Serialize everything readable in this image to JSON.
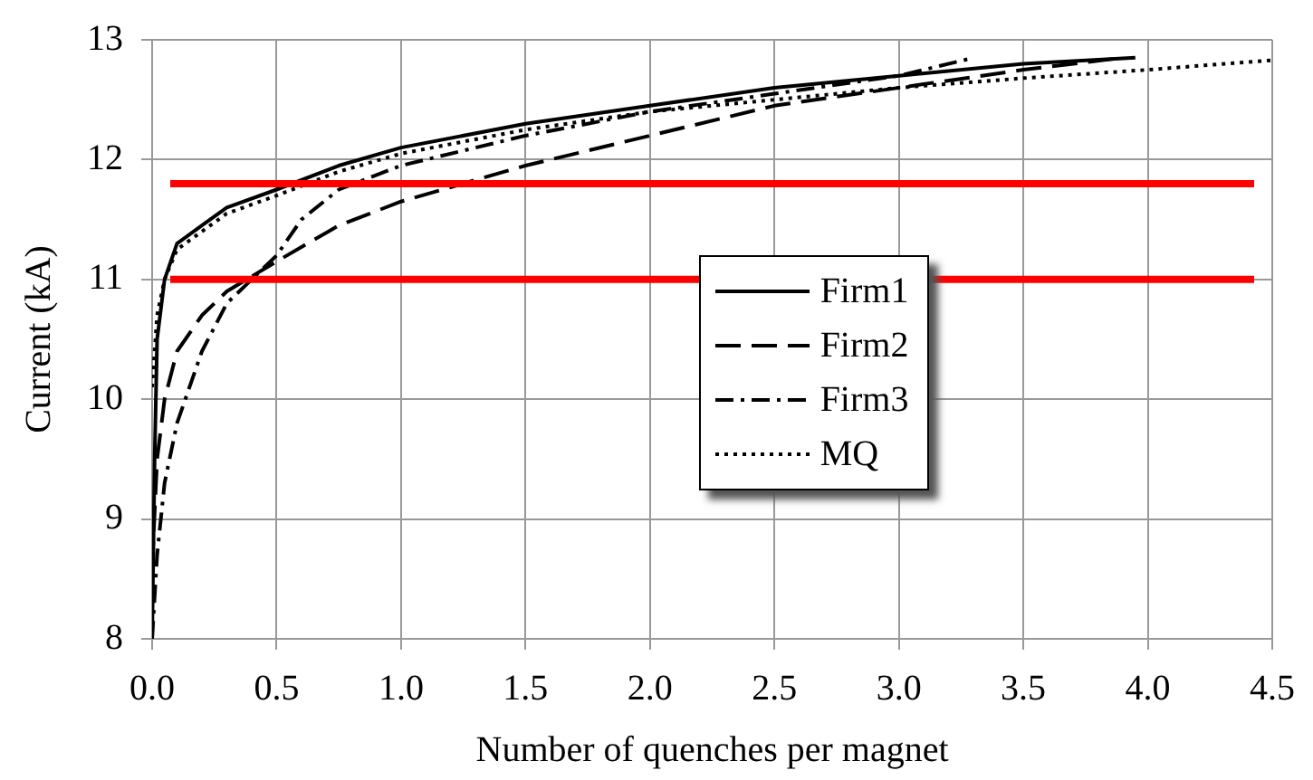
{
  "chart_data": {
    "type": "line",
    "xlabel": "Number of quenches per magnet",
    "ylabel": "Current (kA)",
    "xlim": [
      0,
      4.5
    ],
    "xticks": [
      {
        "value": 0,
        "label": "0.0"
      },
      {
        "value": 0.5,
        "label": "0.5"
      },
      {
        "value": 1,
        "label": "1.0"
      },
      {
        "value": 1.5,
        "label": "1.5"
      },
      {
        "value": 2,
        "label": "2.0"
      },
      {
        "value": 2.5,
        "label": "2.5"
      },
      {
        "value": 3,
        "label": "3.0"
      },
      {
        "value": 3.5,
        "label": "3.5"
      },
      {
        "value": 4,
        "label": "4.0"
      },
      {
        "value": 4.5,
        "label": "4.5"
      }
    ],
    "ylim": [
      8,
      13
    ],
    "yticks": [
      8,
      9,
      10,
      11,
      12,
      13
    ],
    "grid": true,
    "legend": "center",
    "marker": "none",
    "series": [
      {
        "name": "Firm1",
        "color": "#000000",
        "line_style": "solid",
        "x": [
          0,
          0.01,
          0.02,
          0.05,
          0.1,
          0.2,
          0.3,
          0.5,
          0.75,
          1.0,
          1.5,
          2.0,
          2.5,
          3.0,
          3.5,
          3.95
        ],
        "values": [
          8,
          9.5,
          10.5,
          11,
          11.3,
          11.45,
          11.6,
          11.75,
          11.95,
          12.1,
          12.3,
          12.45,
          12.6,
          12.7,
          12.8,
          12.85
        ]
      },
      {
        "name": "Firm2",
        "color": "#000000",
        "line_style": "dashed",
        "x": [
          0,
          0.02,
          0.05,
          0.1,
          0.2,
          0.3,
          0.5,
          0.75,
          1.0,
          1.5,
          2.0,
          2.5,
          3.0,
          3.5,
          3.9
        ],
        "values": [
          8.6,
          9.5,
          10,
          10.4,
          10.7,
          10.9,
          11.15,
          11.45,
          11.65,
          11.95,
          12.2,
          12.45,
          12.6,
          12.75,
          12.85
        ]
      },
      {
        "name": "Firm3",
        "color": "#000000",
        "line_style": "dashdot",
        "x": [
          0,
          0.02,
          0.05,
          0.1,
          0.2,
          0.3,
          0.5,
          0.6,
          0.75,
          1.0,
          1.5,
          2.0,
          2.5,
          3.0,
          3.3
        ],
        "values": [
          8,
          8.7,
          9.3,
          9.8,
          10.4,
          10.8,
          11.2,
          11.5,
          11.75,
          11.95,
          12.2,
          12.4,
          12.55,
          12.7,
          12.85
        ]
      },
      {
        "name": "MQ",
        "color": "#000000",
        "line_style": "dotted",
        "x": [
          0,
          0.02,
          0.05,
          0.1,
          0.2,
          0.3,
          0.5,
          0.75,
          1.0,
          1.5,
          2.0,
          2.5,
          3.0,
          3.5,
          4.0,
          4.5
        ],
        "values": [
          10.1,
          10.7,
          11.0,
          11.25,
          11.4,
          11.55,
          11.7,
          11.9,
          12.05,
          12.25,
          12.4,
          12.5,
          12.6,
          12.68,
          12.75,
          12.83
        ]
      }
    ],
    "ref_lines": [
      {
        "axis": "y",
        "value": 11.8,
        "color": "#ff0000"
      },
      {
        "axis": "y",
        "value": 11.0,
        "color": "#ff0000"
      }
    ]
  }
}
